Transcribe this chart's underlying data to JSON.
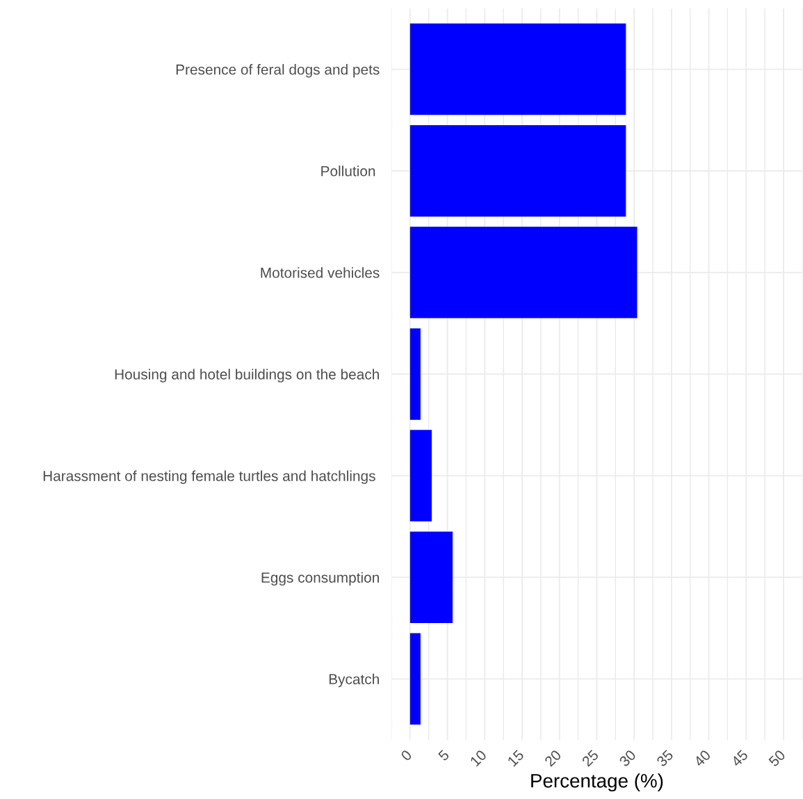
{
  "chart_data": {
    "type": "bar",
    "orientation": "horizontal",
    "xlabel": "Percentage (%)",
    "categories": [
      "Presence of feral dogs and pets",
      "Pollution ",
      "Motorised vehicles",
      "Housing and hotel buildings on the beach",
      "Harassment of nesting female turtles and hatchlings ",
      "Eggs consumption",
      "Bycatch"
    ],
    "values": [
      28.9,
      28.9,
      30.4,
      1.4,
      2.9,
      5.7,
      1.4
    ],
    "color": "#0000ff",
    "xlim": [
      -2.5,
      52.5
    ],
    "xticks": [
      0,
      5,
      10,
      15,
      20,
      25,
      30,
      35,
      40,
      45,
      50
    ],
    "grid": true
  }
}
